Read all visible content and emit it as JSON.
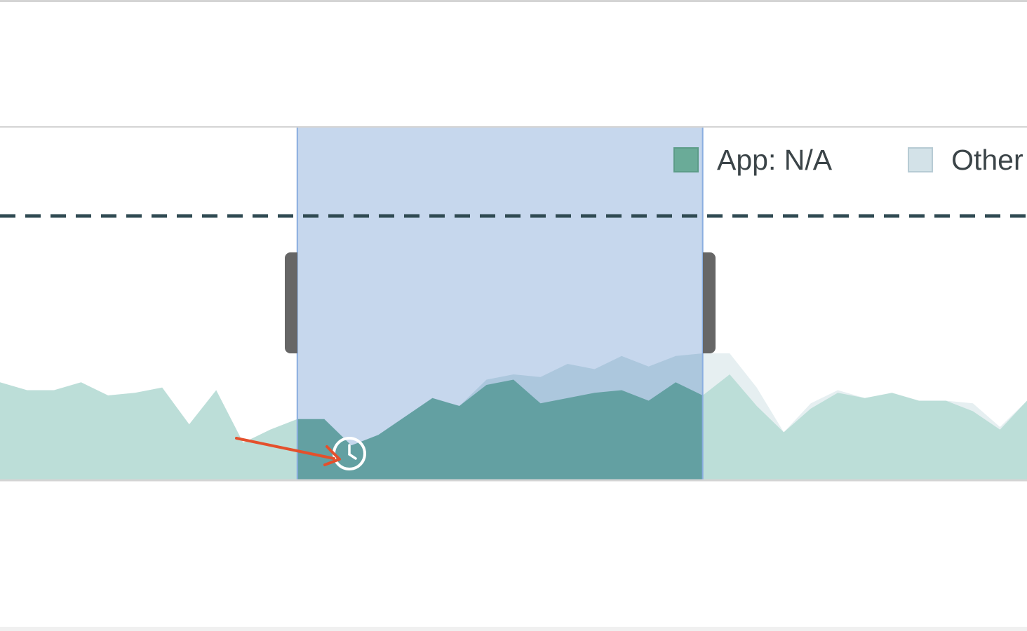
{
  "chart_data": {
    "type": "area",
    "legend": [
      {
        "label": "App: N/A",
        "color": "#6aab98"
      },
      {
        "label": "Other",
        "color": "#d3e2e8"
      }
    ],
    "legend_placement": "top-right",
    "threshold_line": {
      "style": "dashed",
      "color": "#2f4a52"
    },
    "series": [
      {
        "color": "#63a0a2",
        "values": [
          0.37,
          0.34,
          0.34,
          0.37,
          0.32,
          0.33,
          0.35,
          0.21,
          0.34,
          0.14,
          0.19,
          0.23,
          0.23,
          0.13,
          0.17,
          0.24,
          0.31,
          0.28,
          0.36,
          0.38,
          0.29,
          0.31,
          0.33,
          0.34,
          0.3,
          0.37,
          0.32,
          0.4,
          0.28,
          0.18,
          0.27,
          0.33,
          0.31,
          0.33,
          0.3,
          0.3,
          0.26,
          0.19,
          0.3
        ]
      },
      {
        "color": "#d3e2e8",
        "values": [
          0.37,
          0.34,
          0.34,
          0.37,
          0.32,
          0.33,
          0.35,
          0.21,
          0.34,
          0.14,
          0.19,
          0.23,
          0.23,
          0.13,
          0.17,
          0.24,
          0.31,
          0.28,
          0.38,
          0.4,
          0.39,
          0.44,
          0.42,
          0.47,
          0.43,
          0.47,
          0.48,
          0.48,
          0.35,
          0.18,
          0.29,
          0.34,
          0.31,
          0.33,
          0.3,
          0.3,
          0.29,
          0.2,
          0.3
        ]
      }
    ],
    "selection_range": [
      11,
      26
    ]
  },
  "icons": {
    "brush": "clock-icon",
    "annotation": "arrow-annotation-icon"
  },
  "colors": {
    "selection_fill": "#c6d7ed",
    "selection_border": "#8aaee0",
    "handle": "#666666",
    "annotation_arrow": "#e4502c",
    "border": "#d4d4d4"
  }
}
